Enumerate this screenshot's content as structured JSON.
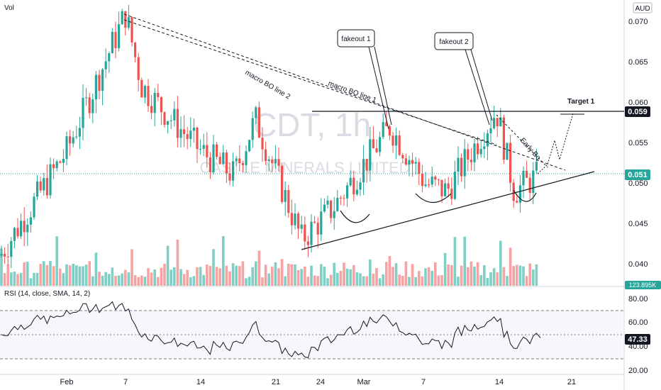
{
  "header": {
    "volume_label": "Vol",
    "currency_label": "AUD"
  },
  "watermark": {
    "symbol": "CDT, 1h",
    "name": "CASTLE MINERALS LIMITED"
  },
  "price_axis": {
    "ticks": [
      "0.070",
      "0.065",
      "0.060",
      "0.055",
      "0.050",
      "0.045",
      "0.040"
    ]
  },
  "price_labels": {
    "level_059": "0.059",
    "last": "0.051",
    "volume_last": "123.895K"
  },
  "annotations": {
    "fakeout_1": "fakeout 1",
    "fakeout_2": "fakeout 2",
    "target_1": "Target 1",
    "macro_line_1": "macro BO line 1",
    "macro_line_2": "macro BO line 2",
    "early_bo": "Early Bo"
  },
  "rsi": {
    "title": "RSI (14, close, SMA, 14, 2)",
    "ticks": [
      "80.00",
      "60.00",
      "40.00",
      "20.00"
    ],
    "last_label": "47.33"
  },
  "time_axis": {
    "ticks": [
      "Feb",
      "7",
      "14",
      "21",
      "24",
      "Mar",
      "7",
      "14",
      "21"
    ]
  },
  "colors": {
    "up": "#26a69a",
    "down": "#ef5350",
    "vol_up": "#7fcfc4",
    "vol_down": "#f7a3a3",
    "line": "#131722"
  },
  "chart_data": {
    "type": "candlestick",
    "symbol": "CDT",
    "timeframe": "1h",
    "y_unit": "AUD",
    "ylim": [
      0.037,
      0.073
    ],
    "x": [
      "Feb",
      "7",
      "14",
      "21",
      "24",
      "Mar",
      "7",
      "14",
      "21"
    ],
    "price_path": [
      {
        "x": "Feb",
        "price": 0.041
      },
      {
        "x": "Feb",
        "price": 0.054
      },
      {
        "x": "7",
        "price": 0.071
      },
      {
        "x": "7",
        "price": 0.062
      },
      {
        "x": "14",
        "price": 0.054
      },
      {
        "x": "14",
        "price": 0.051
      },
      {
        "x": "21",
        "price": 0.058
      },
      {
        "x": "21",
        "price": 0.043
      },
      {
        "x": "24",
        "price": 0.047
      },
      {
        "x": "Mar",
        "price": 0.057
      },
      {
        "x": "Mar",
        "price": 0.05
      },
      {
        "x": "7",
        "price": 0.049
      },
      {
        "x": "14",
        "price": 0.059
      },
      {
        "x": "14",
        "price": 0.049
      },
      {
        "x": "21",
        "price": 0.051
      }
    ],
    "levels": [
      {
        "name": "resistance",
        "price": 0.059
      },
      {
        "name": "last",
        "price": 0.051
      }
    ],
    "rsi": {
      "ylim": [
        18,
        88
      ],
      "last": 47.33,
      "bands": [
        70,
        50,
        30
      ]
    }
  }
}
